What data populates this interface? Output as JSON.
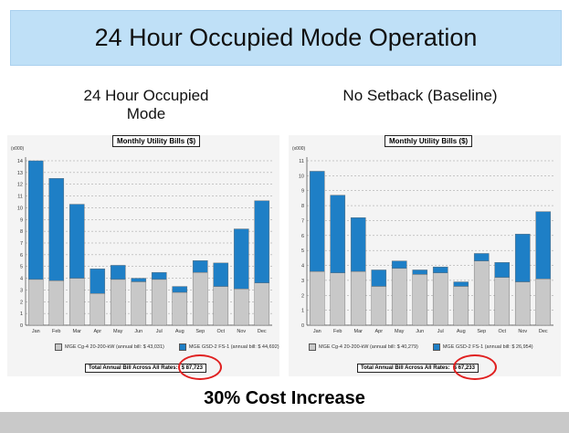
{
  "slide": {
    "title": "24 Hour Occupied Mode Operation",
    "headline": "30% Cost Increase"
  },
  "colors": {
    "rate_a": "#c8c8c8",
    "rate_b": "#1e7fc6",
    "banner": "#bfe0f7",
    "highlight": "#e02020"
  },
  "panels": [
    {
      "heading_line1": "24 Hour Occupied",
      "heading_line2": "Mode"
    },
    {
      "heading_line1": "No Setback (Baseline)",
      "heading_line2": ""
    }
  ],
  "chart_data": [
    {
      "type": "bar",
      "stacked": true,
      "title": "Monthly Utility Bills ($)",
      "yunit": "(x000)",
      "categories": [
        "Jan",
        "Feb",
        "Mar",
        "Apr",
        "May",
        "Jun",
        "Jul",
        "Aug",
        "Sep",
        "Oct",
        "Nov",
        "Dec"
      ],
      "ylim": [
        0,
        14
      ],
      "yticks": [
        0,
        1,
        2,
        3,
        4,
        5,
        6,
        7,
        8,
        9,
        10,
        11,
        12,
        13,
        14
      ],
      "grid": true,
      "legend_position": "bottom",
      "series": [
        {
          "name": "MGE Cg-4 20-200-kW",
          "annual": "(annual bill: $ 43,031)",
          "values": [
            3.9,
            3.8,
            4.0,
            2.7,
            3.9,
            3.7,
            3.9,
            2.8,
            4.5,
            3.3,
            3.1,
            3.6
          ]
        },
        {
          "name": "MGE GSD-2 FS-1",
          "annual": "(annual bill: $ 44,692)",
          "values": [
            10.1,
            8.7,
            6.3,
            2.1,
            1.2,
            0.3,
            0.6,
            0.5,
            1.0,
            2.0,
            5.1,
            7.0
          ]
        }
      ],
      "total_label": "Total Annual Bill Across All Rates:",
      "total_value": "$ 87,723"
    },
    {
      "type": "bar",
      "stacked": true,
      "title": "Monthly Utility Bills ($)",
      "yunit": "(x000)",
      "categories": [
        "Jan",
        "Feb",
        "Mar",
        "Apr",
        "May",
        "Jun",
        "Jul",
        "Aug",
        "Sep",
        "Oct",
        "Nov",
        "Dec"
      ],
      "ylim": [
        0,
        11
      ],
      "yticks": [
        0,
        1,
        2,
        3,
        4,
        5,
        6,
        7,
        8,
        9,
        10,
        11
      ],
      "grid": true,
      "legend_position": "bottom",
      "series": [
        {
          "name": "MGE Cg-4 20-200-kW",
          "annual": "(annual bill: $ 40,279)",
          "values": [
            3.6,
            3.5,
            3.6,
            2.6,
            3.8,
            3.4,
            3.5,
            2.6,
            4.3,
            3.2,
            2.9,
            3.1
          ]
        },
        {
          "name": "MGE GSD-2 FS-1",
          "annual": "(annual bill: $ 26,954)",
          "values": [
            6.7,
            5.2,
            3.6,
            1.1,
            0.5,
            0.3,
            0.4,
            0.3,
            0.5,
            1.0,
            3.2,
            4.5
          ]
        }
      ],
      "total_label": "Total Annual Bill Across All Rates:",
      "total_value": "$ 67,233"
    }
  ]
}
